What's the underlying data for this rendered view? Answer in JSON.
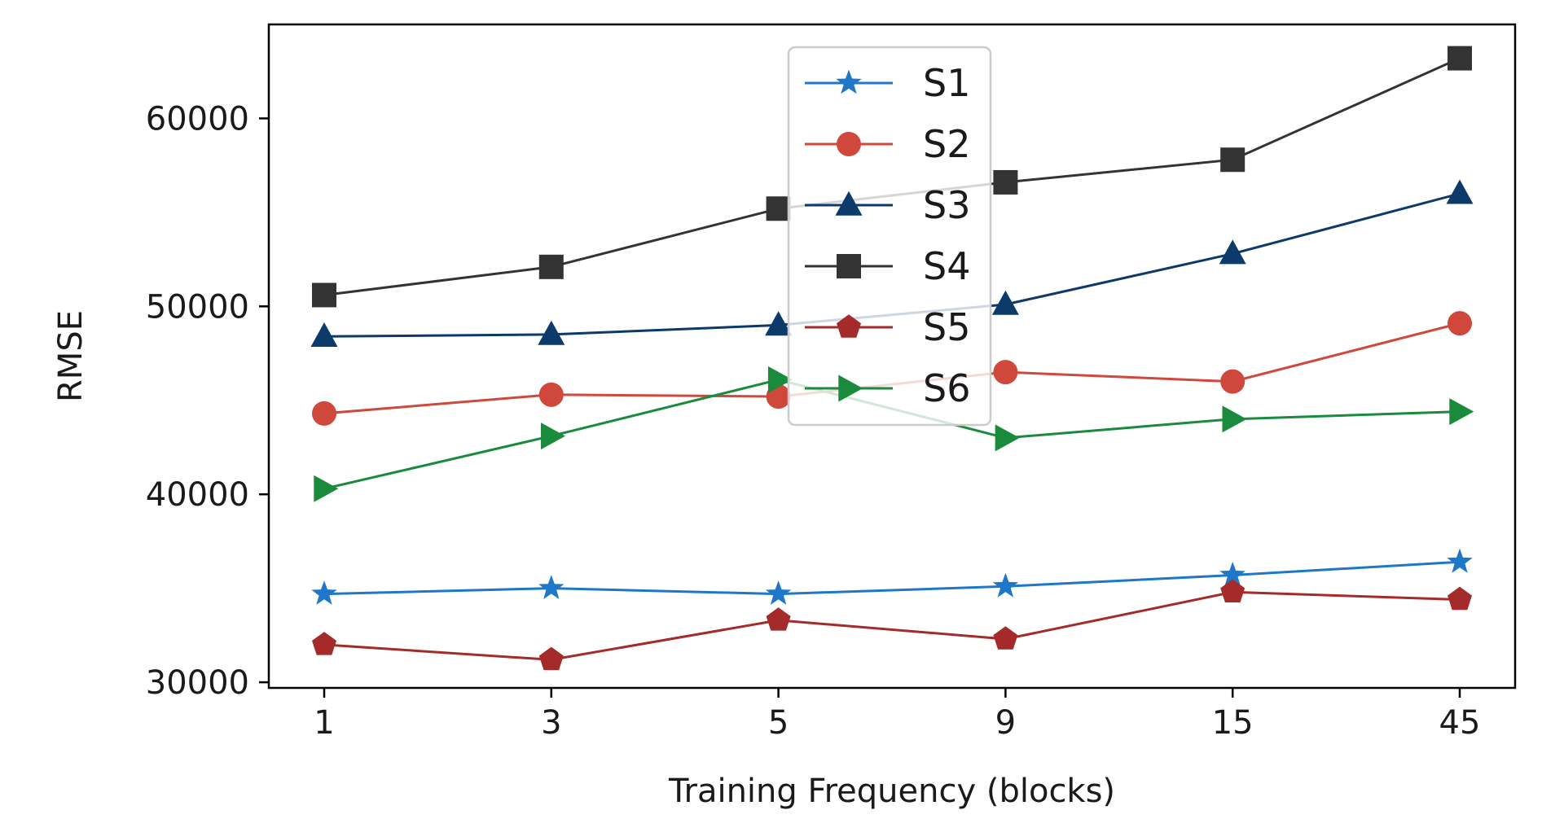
{
  "chart_data": {
    "type": "line",
    "title": "",
    "xlabel": "Training Frequency (blocks)",
    "ylabel": "RMSE",
    "categories": [
      "1",
      "3",
      "5",
      "9",
      "15",
      "45"
    ],
    "ylim": [
      29700,
      65000
    ],
    "yticks": [
      "30000",
      "40000",
      "50000",
      "60000"
    ],
    "grid": false,
    "legend_position": "upper-center",
    "series": [
      {
        "name": "S1",
        "color": "#1f77c9",
        "marker": "star",
        "values": [
          34700,
          35000,
          34700,
          35100,
          35700,
          36400
        ]
      },
      {
        "name": "S2",
        "color": "#d0473b",
        "marker": "circle",
        "values": [
          44300,
          45300,
          45200,
          46500,
          46000,
          49100
        ]
      },
      {
        "name": "S3",
        "color": "#0b3a6b",
        "marker": "triangle-up",
        "values": [
          48400,
          48500,
          49000,
          50100,
          52800,
          56000
        ]
      },
      {
        "name": "S4",
        "color": "#333333",
        "marker": "square",
        "values": [
          50600,
          52100,
          55200,
          56600,
          57800,
          63200
        ]
      },
      {
        "name": "S5",
        "color": "#a52a2a",
        "marker": "pentagon",
        "values": [
          32000,
          31200,
          33300,
          32300,
          34800,
          34400
        ]
      },
      {
        "name": "S6",
        "color": "#1a8a3c",
        "marker": "triangle-right",
        "values": [
          40300,
          43100,
          46100,
          43000,
          44000,
          44400
        ]
      }
    ]
  }
}
